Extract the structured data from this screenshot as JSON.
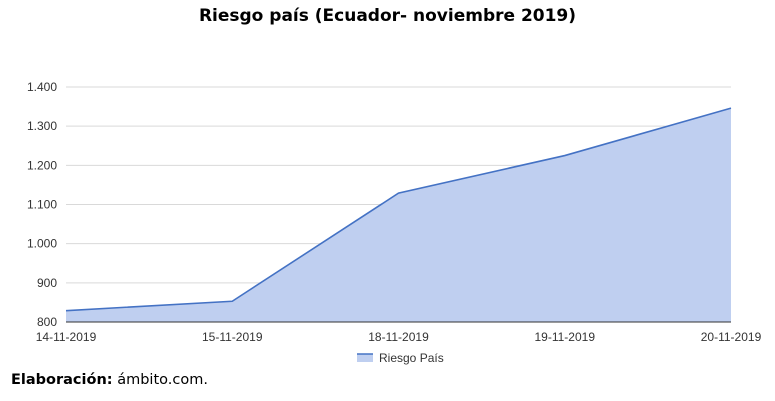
{
  "chart_data": {
    "type": "area",
    "title": "Riesgo país (Ecuador- noviembre 2019)",
    "categories": [
      "14-11-2019",
      "15-11-2019",
      "18-11-2019",
      "19-11-2019",
      "20-11-2019"
    ],
    "series": [
      {
        "name": "Riesgo País",
        "values": [
          829,
          853,
          1129,
          1225,
          1346
        ]
      }
    ],
    "yticks": [
      800,
      900,
      1000,
      1100,
      1200,
      1300,
      1400
    ],
    "ytick_labels": [
      "800",
      "900",
      "1.000",
      "1.100",
      "1.200",
      "1.300",
      "1.400"
    ],
    "ylim": [
      800,
      1400
    ],
    "grid": true,
    "legend_position": "bottom",
    "line_color": "#4472c4",
    "fill_color": "#bfcff0"
  },
  "credit": {
    "label": "Elaboración:",
    "text": "ámbito.com."
  }
}
